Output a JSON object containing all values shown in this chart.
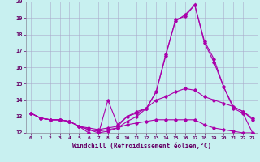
{
  "xlabel": "Windchill (Refroidissement éolien,°C)",
  "background_color": "#c8f0f0",
  "grid_color": "#aaaacc",
  "line_color": "#aa00aa",
  "xlim": [
    -0.5,
    23.5
  ],
  "ylim": [
    12,
    20
  ],
  "xticks": [
    0,
    1,
    2,
    3,
    4,
    5,
    6,
    7,
    8,
    9,
    10,
    11,
    12,
    13,
    14,
    15,
    16,
    17,
    18,
    19,
    20,
    21,
    22,
    23
  ],
  "yticks": [
    12,
    13,
    14,
    15,
    16,
    17,
    18,
    19,
    20
  ],
  "curves": [
    [
      13.2,
      12.9,
      12.8,
      12.8,
      12.7,
      12.4,
      12.0,
      11.9,
      14.0,
      12.5,
      13.0,
      13.2,
      13.5,
      14.5,
      16.7,
      18.9,
      19.1,
      19.8,
      17.5,
      16.3,
      14.8,
      13.6,
      13.3,
      12.8
    ],
    [
      13.2,
      12.9,
      12.8,
      12.8,
      12.7,
      12.4,
      12.3,
      12.2,
      12.3,
      12.4,
      13.0,
      13.3,
      13.5,
      14.0,
      14.2,
      14.5,
      14.7,
      14.6,
      14.2,
      14.0,
      13.8,
      13.6,
      13.3,
      12.9
    ],
    [
      13.2,
      12.9,
      12.8,
      12.8,
      12.7,
      12.4,
      12.2,
      12.1,
      12.2,
      12.3,
      12.5,
      12.6,
      12.7,
      12.8,
      12.8,
      12.8,
      12.8,
      12.8,
      12.5,
      12.3,
      12.2,
      12.1,
      12.0,
      12.0
    ],
    [
      13.2,
      12.9,
      12.8,
      12.8,
      12.7,
      12.4,
      12.2,
      12.0,
      12.1,
      12.3,
      12.7,
      13.0,
      13.5,
      14.5,
      16.8,
      18.8,
      19.2,
      19.8,
      17.6,
      16.5,
      14.8,
      13.5,
      13.2,
      12.0
    ]
  ]
}
